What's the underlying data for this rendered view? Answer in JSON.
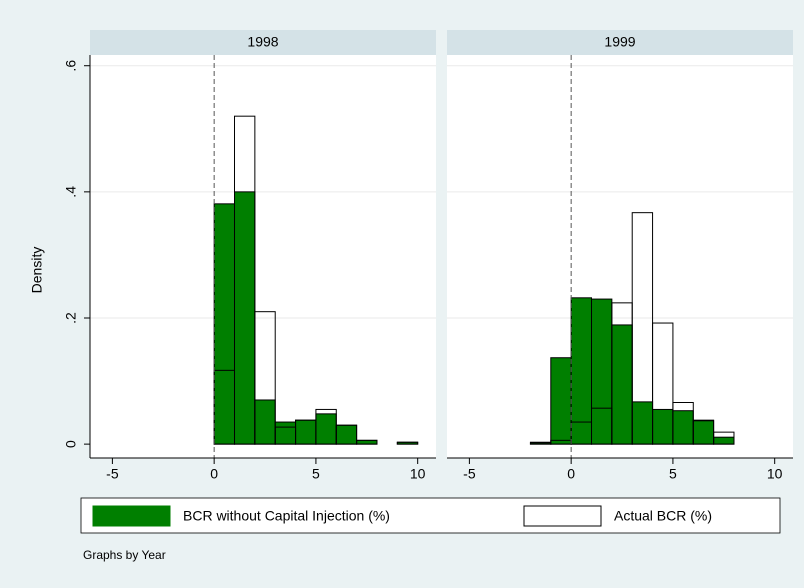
{
  "chart_data": {
    "type": "histogram",
    "ylabel": "Density",
    "note": "Graphs by Year",
    "ylim": [
      -0.022,
      0.617
    ],
    "yticks": [
      {
        "value": 0,
        "label": "0"
      },
      {
        "value": 0.2,
        "label": ".2"
      },
      {
        "value": 0.4,
        "label": ".4"
      },
      {
        "value": 0.6,
        "label": ".6"
      }
    ],
    "xlim": [
      -6.1,
      10.9
    ],
    "xticks": [
      -5,
      0,
      5,
      10
    ],
    "xline": 0,
    "grid": true,
    "legend": [
      {
        "name": "BCR without Capital Injection (%)",
        "color": "#007f00"
      },
      {
        "name": "Actual BCR (%)",
        "color": "none"
      }
    ],
    "panels": [
      {
        "title": "1998",
        "bins": [
          0,
          1,
          2,
          3,
          4,
          5,
          6,
          7,
          8,
          9,
          10
        ],
        "series": [
          {
            "values": [
              0.381,
              0.4,
              0.07,
              0.035,
              0.038,
              0.048,
              0.03,
              0.006,
              0,
              0.003
            ]
          },
          {
            "values": [
              0.117,
              0.52,
              0.21,
              0.027,
              0.038,
              0.055,
              0.03,
              0.006,
              0,
              0.003
            ]
          }
        ]
      },
      {
        "title": "1999",
        "bins": [
          -2,
          -1,
          0,
          1,
          2,
          3,
          4,
          5,
          6,
          7,
          8
        ],
        "series": [
          {
            "values": [
              0.002,
              0.137,
              0.232,
              0.23,
              0.189,
              0.067,
              0.055,
              0.053,
              0.038,
              0.011
            ]
          },
          {
            "values": [
              0.003,
              0.006,
              0.035,
              0.057,
              0.224,
              0.367,
              0.192,
              0.066,
              0.037,
              0.019
            ]
          }
        ]
      }
    ]
  }
}
